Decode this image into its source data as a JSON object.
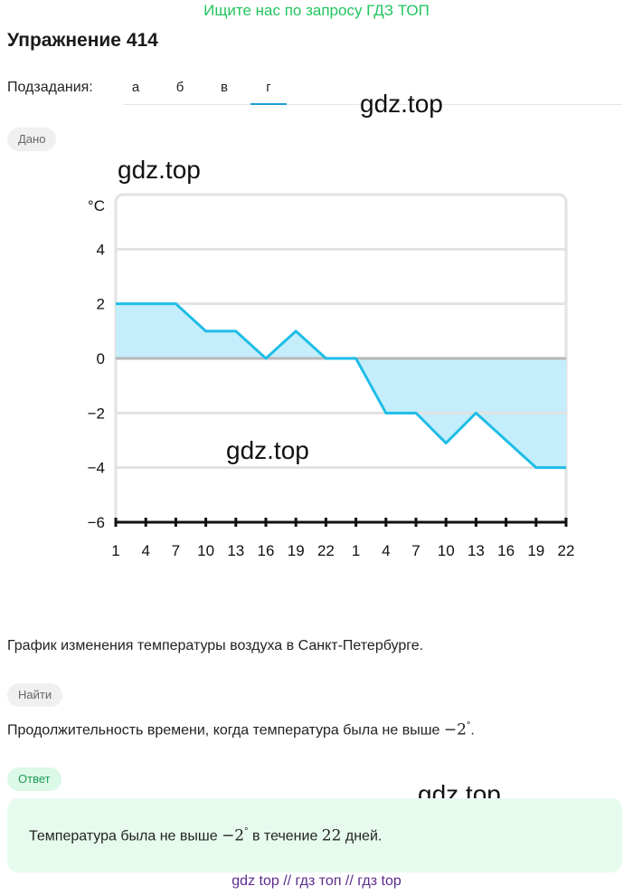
{
  "banner": "Ищите нас по запросу ГДЗ ТОП",
  "title": "Упражнение 414",
  "subtasks": {
    "label": "Подзадания:",
    "tabs": [
      "а",
      "б",
      "в",
      "г"
    ],
    "active": "г"
  },
  "watermarks": [
    "gdz.top",
    "gdz.top",
    "gdz.top",
    "gdz.top"
  ],
  "given_label": "Дано",
  "find_label": "Найти",
  "answer_label": "Ответ",
  "caption": "График изменения температуры воздуха в Санкт-Петербурге.",
  "find_text": {
    "prefix": "Продолжительность времени, когда температура была не выше ",
    "value": "−2",
    "degree": "°",
    "suffix": "."
  },
  "answer": {
    "prefix": "Температура была не выше ",
    "value": "−2",
    "degree": "°",
    "mid": " в течение ",
    "days": "22",
    "suffix": " дней."
  },
  "footer": "gdz top  //  гдз топ  //  гдз top",
  "colors": {
    "line": "#1fbde8",
    "fill": "#c4eefb",
    "grid": "#e2e2e2",
    "zero_line": "#b8b8b8",
    "accent_green": "#22c55e",
    "tab_underline": "#1e9bd7"
  },
  "chart_data": {
    "type": "area",
    "ylabel": "°C",
    "ylim": [
      -6,
      6
    ],
    "yticks": [
      4,
      2,
      0,
      -2,
      -4,
      -6
    ],
    "ytick_labels": [
      "4",
      "2",
      "0",
      "−2",
      "−4",
      "−6"
    ],
    "xtick_labels": [
      "1",
      "4",
      "7",
      "10",
      "13",
      "16",
      "19",
      "22",
      "1",
      "4",
      "7",
      "10",
      "13",
      "16",
      "19",
      "22"
    ],
    "x": [
      0,
      1,
      2,
      3,
      4,
      5,
      6,
      7,
      8,
      9,
      10,
      11,
      12,
      13,
      14,
      15
    ],
    "values": [
      2,
      2,
      2,
      1,
      1,
      0,
      1,
      0,
      0,
      -2,
      -2,
      -3.1,
      -2,
      -3,
      -4,
      -4
    ],
    "grid": true
  }
}
